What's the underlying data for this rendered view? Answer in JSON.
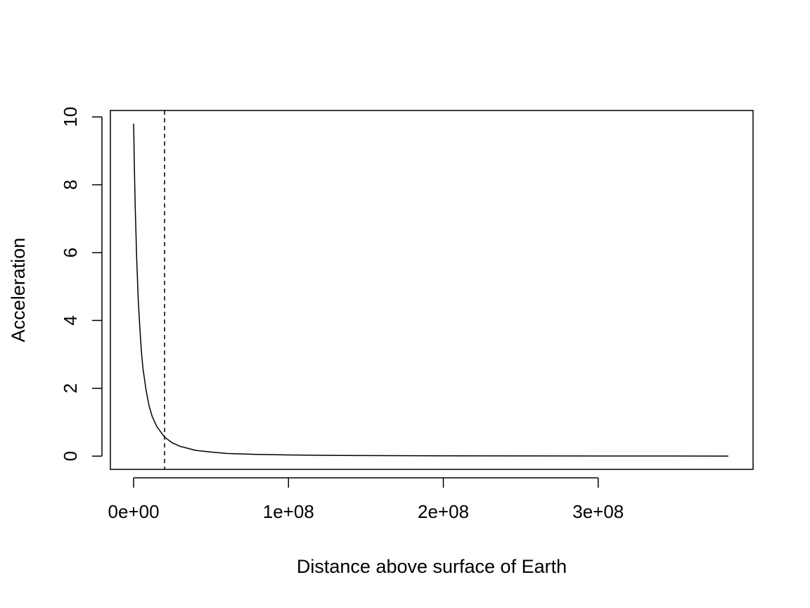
{
  "chart_data": {
    "type": "line",
    "xlabel": "Distance above surface of Earth",
    "ylabel": "Acceleration",
    "xlim": [
      -15000000,
      400000000
    ],
    "ylim": [
      -0.39,
      10.19
    ],
    "x_ticks": [
      {
        "value": 0,
        "label": "0e+00"
      },
      {
        "value": 100000000,
        "label": "1e+08"
      },
      {
        "value": 200000000,
        "label": "2e+08"
      },
      {
        "value": 300000000,
        "label": "3e+08"
      }
    ],
    "y_ticks": [
      {
        "value": 0,
        "label": "0"
      },
      {
        "value": 2,
        "label": "2"
      },
      {
        "value": 4,
        "label": "4"
      },
      {
        "value": 6,
        "label": "6"
      },
      {
        "value": 8,
        "label": "8"
      },
      {
        "value": 10,
        "label": "10"
      }
    ],
    "series": [
      {
        "line_style": "solid",
        "color": "#000000",
        "x": [
          0,
          500000,
          1000000,
          2000000,
          3000000,
          4000000,
          5000000,
          6000000,
          8000000,
          10000000,
          12000000,
          15000000,
          20000000,
          25000000,
          30000000,
          40000000,
          50000000,
          60000000,
          80000000,
          100000000,
          120000000,
          150000000,
          200000000,
          250000000,
          300000000,
          350000000,
          384000000
        ],
        "y": [
          9.8,
          8.5,
          7.4,
          5.8,
          4.6,
          3.8,
          3.1,
          2.6,
          1.95,
          1.48,
          1.17,
          0.87,
          0.56,
          0.39,
          0.29,
          0.17,
          0.12,
          0.08,
          0.05,
          0.035,
          0.025,
          0.016,
          0.01,
          0.006,
          0.004,
          0.003,
          0.0027
        ]
      }
    ],
    "reference_lines": [
      {
        "orientation": "vertical",
        "x": 20000000,
        "line_style": "dashed",
        "color": "#000000"
      }
    ],
    "grid": false,
    "legend": "none"
  }
}
